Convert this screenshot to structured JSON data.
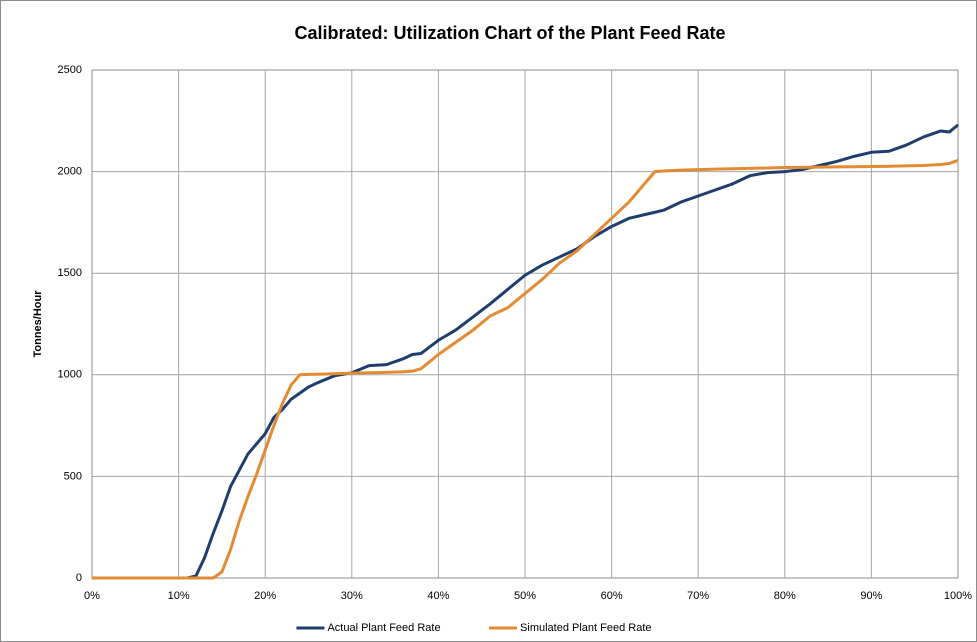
{
  "chart_data": {
    "type": "line",
    "title": "Calibrated:  Utilization Chart of the Plant Feed Rate",
    "y_label": "Tonnes/Hour",
    "x": [
      0,
      10,
      11,
      12,
      13,
      14,
      15,
      16,
      17,
      18,
      19,
      20,
      21,
      22,
      23,
      24,
      25,
      26,
      28,
      30,
      32,
      34,
      36,
      37,
      38,
      40,
      42,
      44,
      46,
      48,
      50,
      52,
      54,
      56,
      58,
      60,
      62,
      64,
      65,
      66,
      68,
      70,
      72,
      74,
      76,
      78,
      80,
      82,
      84,
      86,
      88,
      90,
      92,
      94,
      96,
      98,
      99,
      100
    ],
    "series": [
      {
        "name": "Actual Plant Feed Rate",
        "color": "#1f3e6e",
        "values": [
          0,
          0,
          0,
          10,
          100,
          220,
          330,
          450,
          530,
          610,
          660,
          710,
          790,
          830,
          880,
          910,
          940,
          960,
          995,
          1010,
          1045,
          1050,
          1080,
          1100,
          1105,
          1170,
          1220,
          1285,
          1350,
          1420,
          1490,
          1540,
          1580,
          1620,
          1680,
          1730,
          1770,
          1790,
          1800,
          1810,
          1850,
          1880,
          1910,
          1940,
          1980,
          1995,
          2000,
          2010,
          2030,
          2050,
          2075,
          2095,
          2100,
          2130,
          2170,
          2200,
          2195,
          2230
        ]
      },
      {
        "name": "Simulated Plant Feed Rate",
        "color": "#e38a33",
        "values": [
          0,
          0,
          0,
          0,
          0,
          0,
          30,
          140,
          280,
          400,
          510,
          630,
          750,
          860,
          950,
          1000,
          1002,
          1003,
          1005,
          1008,
          1010,
          1012,
          1015,
          1018,
          1030,
          1100,
          1160,
          1220,
          1290,
          1330,
          1400,
          1470,
          1550,
          1610,
          1690,
          1770,
          1850,
          1950,
          2000,
          2003,
          2007,
          2010,
          2012,
          2014,
          2016,
          2018,
          2020,
          2021,
          2022,
          2023,
          2024,
          2025,
          2026,
          2028,
          2030,
          2035,
          2040,
          2055
        ]
      }
    ],
    "xlim": [
      0,
      100
    ],
    "xticks": [
      {
        "value": 0,
        "label": "0%"
      },
      {
        "value": 10,
        "label": "10%"
      },
      {
        "value": 20,
        "label": "20%"
      },
      {
        "value": 30,
        "label": "30%"
      },
      {
        "value": 40,
        "label": "40%"
      },
      {
        "value": 50,
        "label": "50%"
      },
      {
        "value": 60,
        "label": "60%"
      },
      {
        "value": 70,
        "label": "70%"
      },
      {
        "value": 80,
        "label": "80%"
      },
      {
        "value": 90,
        "label": "90%"
      },
      {
        "value": 100,
        "label": "100%"
      }
    ],
    "ylim": [
      0,
      2500
    ],
    "yticks": [
      0,
      500,
      1000,
      1500,
      2000,
      2500
    ],
    "grid": true,
    "legend": "bottom"
  }
}
